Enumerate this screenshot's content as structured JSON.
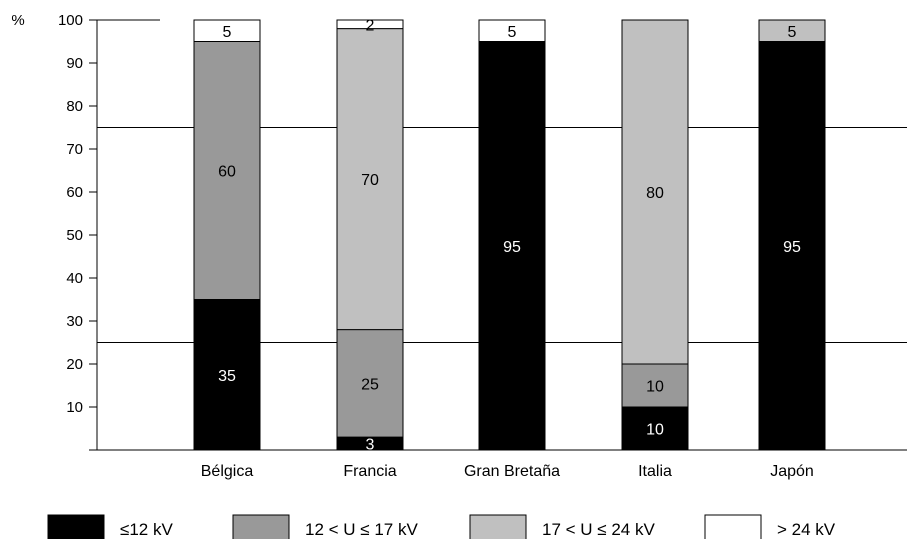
{
  "chart_data": {
    "type": "bar",
    "stacked": true,
    "y_unit": "%",
    "ylim": [
      0,
      100
    ],
    "yticks": [
      10,
      20,
      30,
      40,
      50,
      60,
      70,
      80,
      90,
      100
    ],
    "categories": [
      "Bélgica",
      "Francia",
      "Gran Bretaña",
      "Italia",
      "Japón"
    ],
    "series": [
      {
        "name": "≤12 kV",
        "color": "#000000",
        "label_color": "#ffffff",
        "values": [
          35,
          3,
          95,
          10,
          95
        ],
        "labels": [
          "35",
          "3",
          "95",
          "10",
          "95"
        ]
      },
      {
        "name": "12 < U ≤ 17 kV",
        "color": "#999999",
        "label_color": "#000000",
        "values": [
          60,
          25,
          0,
          10,
          0
        ],
        "labels": [
          "60",
          "25",
          "",
          "10",
          ""
        ]
      },
      {
        "name": "17 < U ≤ 24 kV",
        "color": "#c0c0c0",
        "label_color": "#000000",
        "values": [
          0,
          70,
          0,
          80,
          5
        ],
        "labels": [
          "",
          "70",
          "",
          "80",
          "5"
        ]
      },
      {
        "name": "> 24 kV",
        "color": "#ffffff",
        "label_color": "#000000",
        "values": [
          5,
          2,
          5,
          0,
          0
        ],
        "labels": [
          "5",
          "2",
          "5",
          "",
          ""
        ]
      }
    ],
    "grid": "partial horizontal lines at 25 and 75 spanning full width",
    "legend": "bottom"
  }
}
